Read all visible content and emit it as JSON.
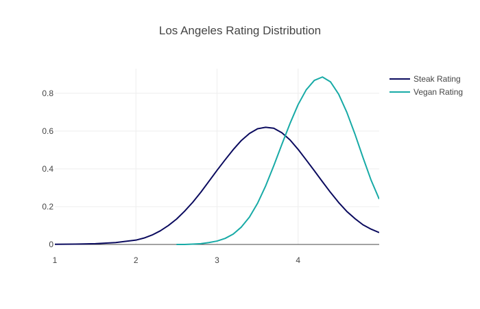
{
  "chart_data": {
    "type": "line",
    "title": "Los Angeles Rating Distribution",
    "xlabel": "",
    "ylabel": "",
    "xlim": [
      1,
      5
    ],
    "ylim": [
      0,
      0.93
    ],
    "xticks": [
      1,
      2,
      3,
      4
    ],
    "yticks": [
      0,
      0.2,
      0.4,
      0.6,
      0.8
    ],
    "ytick_labels": [
      "0",
      "0.2",
      "0.4",
      "0.6",
      "0.8"
    ],
    "grid": true,
    "legend_position": "top-right",
    "series": [
      {
        "name": "Steak Rating",
        "color": "#0a0a5e",
        "x": [
          1.0,
          1.25,
          1.5,
          1.75,
          2.0,
          2.1,
          2.2,
          2.3,
          2.4,
          2.5,
          2.6,
          2.7,
          2.8,
          2.9,
          3.0,
          3.1,
          3.2,
          3.3,
          3.4,
          3.5,
          3.6,
          3.7,
          3.8,
          3.9,
          4.0,
          4.1,
          4.2,
          4.3,
          4.4,
          4.5,
          4.6,
          4.7,
          4.8,
          4.9,
          5.0
        ],
        "y": [
          0.001,
          0.002,
          0.004,
          0.01,
          0.023,
          0.034,
          0.05,
          0.072,
          0.1,
          0.134,
          0.176,
          0.223,
          0.276,
          0.334,
          0.392,
          0.448,
          0.502,
          0.55,
          0.587,
          0.612,
          0.62,
          0.615,
          0.591,
          0.553,
          0.503,
          0.447,
          0.39,
          0.332,
          0.275,
          0.222,
          0.175,
          0.137,
          0.104,
          0.081,
          0.063
        ]
      },
      {
        "name": "Vegan Rating",
        "color": "#17aaa6",
        "x": [
          2.5,
          2.6,
          2.7,
          2.8,
          2.9,
          3.0,
          3.1,
          3.2,
          3.3,
          3.4,
          3.5,
          3.6,
          3.7,
          3.8,
          3.9,
          4.0,
          4.1,
          4.2,
          4.3,
          4.4,
          4.5,
          4.6,
          4.7,
          4.8,
          4.9,
          5.0
        ],
        "y": [
          0.0,
          0.0,
          0.002,
          0.004,
          0.01,
          0.018,
          0.032,
          0.055,
          0.092,
          0.145,
          0.218,
          0.31,
          0.417,
          0.53,
          0.64,
          0.74,
          0.818,
          0.868,
          0.886,
          0.86,
          0.795,
          0.7,
          0.585,
          0.46,
          0.34,
          0.24
        ]
      }
    ]
  }
}
